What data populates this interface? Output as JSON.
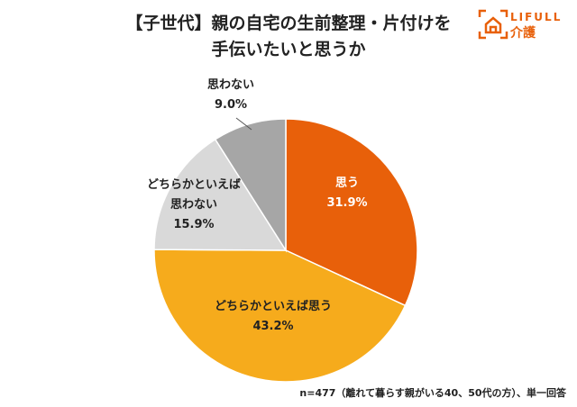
{
  "title_line1": "【子世代】親の自宅の生前整理・片付けを",
  "title_line2": "手伝いたいと思うか",
  "logo": {
    "en": "LIFULL",
    "ja": "介護"
  },
  "note": "n=477（離れて暮らす親がいる40、50代の方）、単一回答",
  "chart_data": {
    "type": "pie",
    "start": "top, clockwise",
    "slices": [
      {
        "label": "思う",
        "value": 31.9,
        "display": "31.9%",
        "color": "#E8600A",
        "label_color": "#ffffff"
      },
      {
        "label": "どちらかといえば思う",
        "value": 43.2,
        "display": "43.2%",
        "color": "#F6AB1C",
        "label_color": "#222222"
      },
      {
        "label": "どちらかといえば思わない",
        "label_lines": [
          "どちらかといえば",
          "思わない"
        ],
        "value": 15.9,
        "display": "15.9%",
        "color": "#D9D9D9",
        "label_color": "#222222"
      },
      {
        "label": "思わない",
        "value": 9.0,
        "display": "9.0%",
        "color": "#A6A6A6",
        "label_color": "#222222"
      }
    ]
  }
}
